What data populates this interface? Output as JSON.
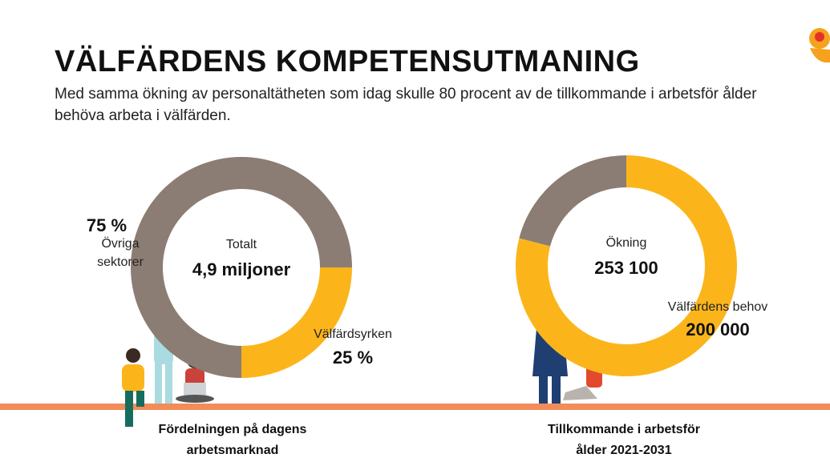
{
  "title": "VÄLFÄRDENS KOMPETENSUTMANING",
  "subtitle": "Med samma ökning av personaltätheten som idag skulle 80 procent av de tillkommande i arbetsför ålder behöva arbeta i välfärden.",
  "chart_data": [
    {
      "type": "pie",
      "donut": true,
      "categories": [
        "Övriga sektorer",
        "Välfärdsyrken"
      ],
      "values": [
        75,
        25
      ],
      "value_labels": [
        "75 %",
        "25 %"
      ],
      "colors": [
        "#8b7d73",
        "#fbb51b"
      ],
      "center_label": "Totalt",
      "center_value": "4,9 miljoner",
      "caption": "Fördelningen på dagens arbetsmarknad"
    },
    {
      "type": "pie",
      "donut": true,
      "categories": [
        "Välfärdens behov",
        null
      ],
      "values": [
        200000,
        53100
      ],
      "value_labels": [
        "200 000",
        null
      ],
      "colors": [
        "#fbb51b",
        "#8b7d73"
      ],
      "center_label": "Ökning",
      "center_value": "253 100",
      "caption": "Tillkommande i arbetsför ålder 2021-2031"
    }
  ]
}
